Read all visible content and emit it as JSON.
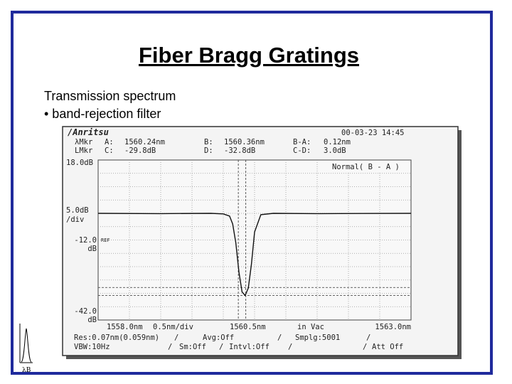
{
  "slide": {
    "title": "Fiber Bragg Gratings",
    "bullets": [
      "Transmission spectrum",
      "• band-rejection filter"
    ],
    "icon_label": "λB"
  },
  "osa": {
    "brand": "/Anritsu",
    "datetime": "00-03-23 14:45",
    "markers": [
      [
        "λMkr",
        "A:",
        "1560.24nm",
        "B:",
        "1560.36nm",
        "B-A:",
        "0.12nm"
      ],
      [
        "LMkr",
        "C:",
        "-29.8dB",
        "D:",
        "-32.8dB",
        "C-D:",
        "3.0dB"
      ]
    ],
    "mode": "Normal( B - A )",
    "y_labels": [
      "18.0dB",
      "5.0dB",
      "/div",
      "-12.0",
      "dB",
      "REF",
      "-42.0",
      "dB"
    ],
    "x_labels": [
      "1558.0nm",
      "0.5nm/div",
      "1560.5nm",
      "in Vac",
      "1563.0nm"
    ],
    "settings": [
      [
        "Res:0.07nm(0.059nm)",
        "/",
        "Avg:Off",
        "/",
        "Smplg:5001",
        "/"
      ],
      [
        "VBW:10Hz",
        "/",
        "Sm:Off",
        "/",
        "Intvl:Off",
        "/",
        "/",
        "Att Off"
      ]
    ],
    "marker_lines": {
      "x": [
        1560.24,
        1560.36
      ],
      "y": [
        -29.8,
        -32.8
      ]
    },
    "trace": {
      "xlim": [
        1558,
        1563
      ],
      "ylim": [
        -42,
        18
      ],
      "x": [
        1558,
        1559,
        1559.8,
        1560.0,
        1560.1,
        1560.15,
        1560.2,
        1560.25,
        1560.3,
        1560.35,
        1560.4,
        1560.45,
        1560.5,
        1560.6,
        1560.8,
        1561.5,
        1563
      ],
      "values": [
        -2,
        -2.1,
        -2,
        -2.2,
        -3,
        -6,
        -13,
        -24,
        -31.5,
        -32.8,
        -30,
        -21,
        -9,
        -2.5,
        -2,
        -2.1,
        -2
      ]
    }
  }
}
